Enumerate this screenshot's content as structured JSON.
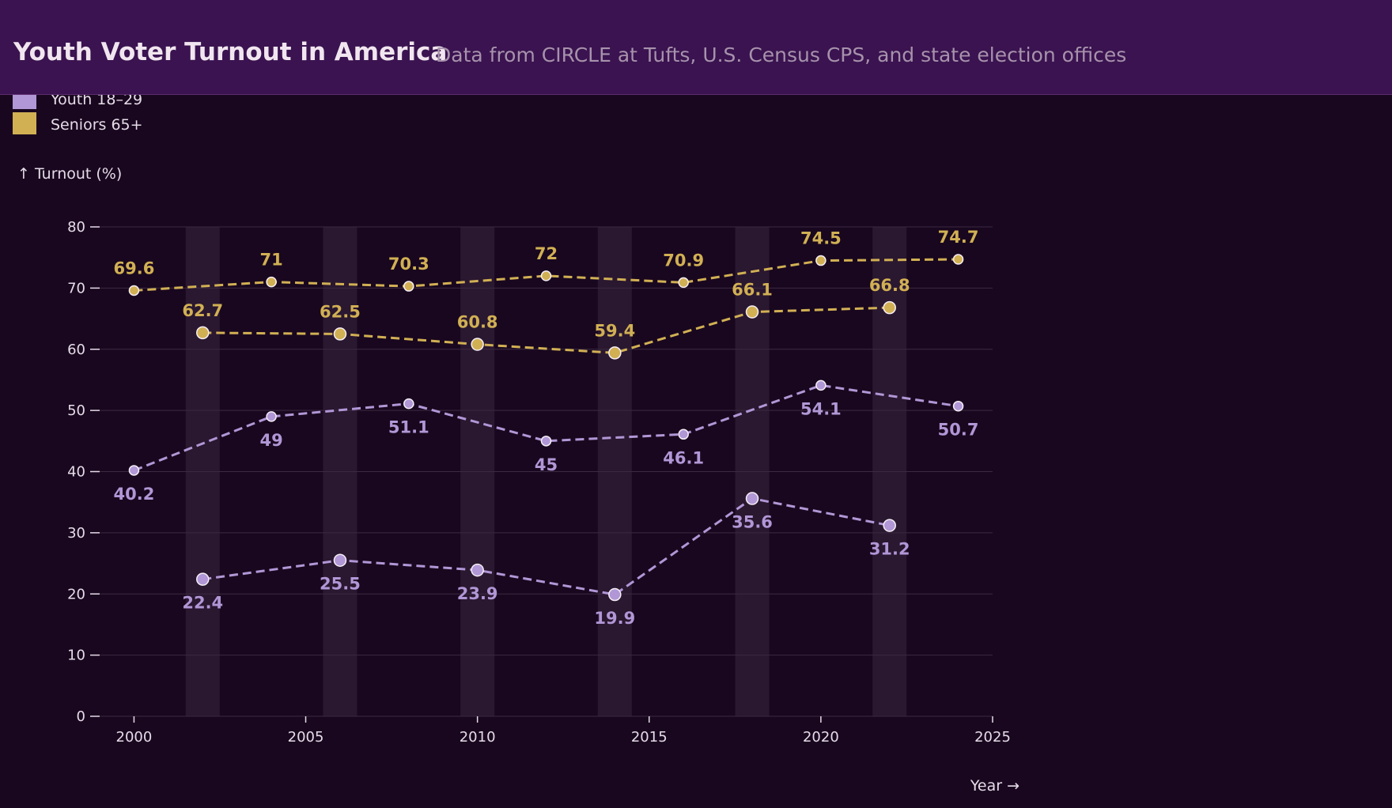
{
  "header": {
    "title": "Youth Voter Turnout in America",
    "subtitle": "Data from CIRCLE at Tufts, U.S. Census CPS, and state election offices"
  },
  "chart_data": {
    "type": "line",
    "title": "Youth Voter Turnout in America",
    "subtitle": "Data from CIRCLE at Tufts, U.S. Census CPS, and state election offices",
    "xlabel": "Year →",
    "ylabel": "↑ Turnout (%)",
    "xlim": [
      1999,
      2025
    ],
    "ylim": [
      0,
      80
    ],
    "x_ticks": [
      2000,
      2005,
      2010,
      2015,
      2020,
      2025
    ],
    "y_ticks": [
      0,
      10,
      20,
      30,
      40,
      50,
      60,
      70,
      80
    ],
    "grid": "horizontal",
    "legend": {
      "position": "top-left",
      "entries": [
        {
          "label": "Youth 18–29",
          "color": "#b197d6"
        },
        {
          "label": "Seniors 65+",
          "color": "#d1b054"
        }
      ]
    },
    "midterm_band_years": [
      2002,
      2006,
      2010,
      2014,
      2018,
      2022
    ],
    "series": [
      {
        "name": "Seniors 65+",
        "election": "presidential",
        "color": "#d1b054",
        "x": [
          2000,
          2004,
          2008,
          2012,
          2016,
          2020,
          2024
        ],
        "y": [
          69.6,
          71,
          70.3,
          72,
          70.9,
          74.5,
          74.7
        ],
        "label_side": "above"
      },
      {
        "name": "Seniors 65+",
        "election": "midterm",
        "color": "#d1b054",
        "x": [
          2002,
          2006,
          2010,
          2014,
          2018,
          2022
        ],
        "y": [
          62.7,
          62.5,
          60.8,
          59.4,
          66.1,
          66.8
        ],
        "label_side": "above"
      },
      {
        "name": "Youth 18–29",
        "election": "presidential",
        "color": "#b197d6",
        "x": [
          2000,
          2004,
          2008,
          2012,
          2016,
          2020,
          2024
        ],
        "y": [
          40.2,
          49,
          51.1,
          45,
          46.1,
          54.1,
          50.7
        ],
        "label_side": "below"
      },
      {
        "name": "Youth 18–29",
        "election": "midterm",
        "color": "#b197d6",
        "x": [
          2002,
          2006,
          2010,
          2014,
          2018,
          2022
        ],
        "y": [
          22.4,
          25.5,
          23.9,
          19.9,
          35.6,
          31.2
        ],
        "label_side": "below"
      }
    ]
  }
}
